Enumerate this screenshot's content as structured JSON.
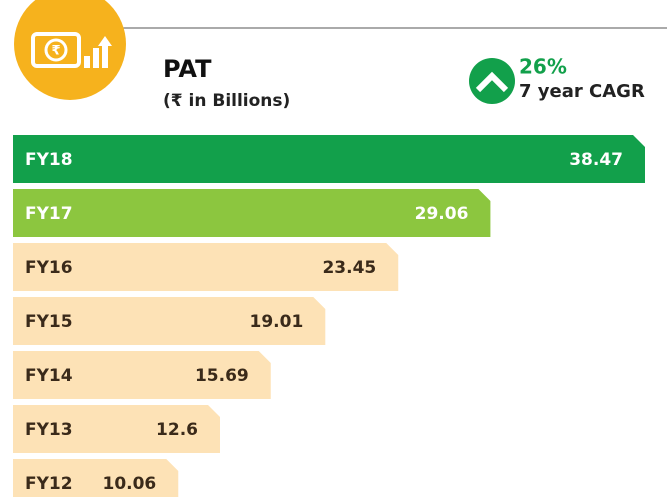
{
  "chart_data": {
    "type": "hbar",
    "title": "PAT",
    "subtitle": "(₹ in Billions)",
    "cagr": "26%",
    "cagr_label": "7 year CAGR",
    "categories": [
      "FY18",
      "FY17",
      "FY16",
      "FY15",
      "FY14",
      "FY13",
      "FY12"
    ],
    "values": [
      38.47,
      29.06,
      23.45,
      19.01,
      15.69,
      12.6,
      10.06
    ],
    "colors": [
      "#12a04b",
      "#8cc63f",
      "#fde2b6",
      "#fde2b6",
      "#fde2b6",
      "#fde2b6",
      "#fde2b6"
    ],
    "label_colors": [
      "#ffffff",
      "#ffffff",
      "#3a2a1a",
      "#3a2a1a",
      "#3a2a1a",
      "#3a2a1a",
      "#3a2a1a"
    ]
  }
}
